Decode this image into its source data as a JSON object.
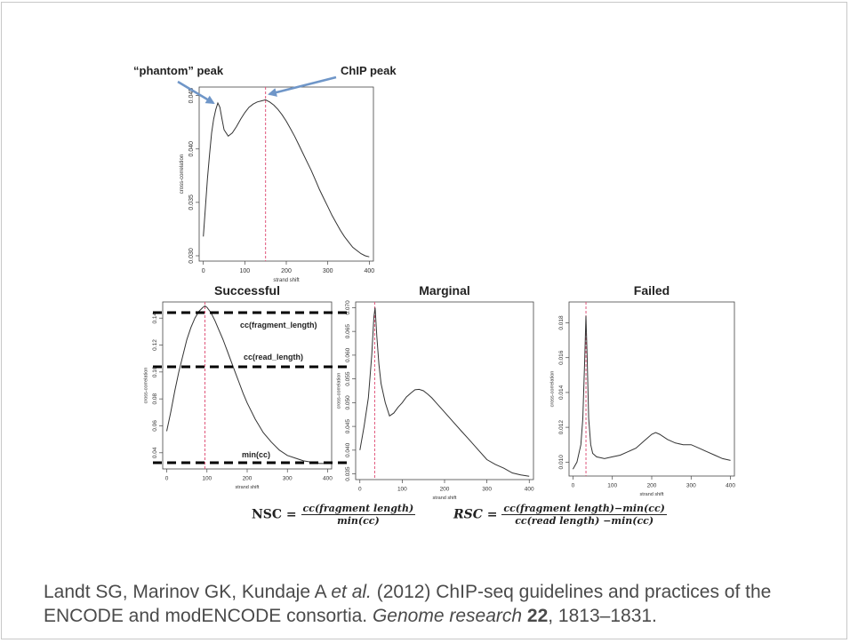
{
  "annotations": {
    "phantom_label": "“phantom” peak",
    "chip_label": "ChIP peak",
    "cc_fragment": "cc(fragment_length)",
    "cc_read": "cc(read_length)",
    "min_cc": "min(cc)"
  },
  "formulas": {
    "nsc": {
      "name": "NSC",
      "equals": " = ",
      "numerator": "cc(fragment length)",
      "denominator": "min(cc)"
    },
    "rsc": {
      "name": "RSC",
      "equals": " = ",
      "numerator": "cc(fragment length)−min(cc)",
      "denominator": "cc(read length) −min(cc)"
    }
  },
  "citation": {
    "authors": "Landt SG, Marinov GK, Kundaje A ",
    "etal": "et al.",
    "title": " (2012) ChIP-seq guidelines and practices of the ENCODE and modENCODE consortia. ",
    "journal": "Genome research",
    "space": " ",
    "volume": "22",
    "pages": ", 1813–1831."
  },
  "colors": {
    "arrow": "#6f96c8",
    "dashed_red": "#e0557a",
    "line": "#333333"
  },
  "chart_data": [
    {
      "type": "line",
      "title": "",
      "xlabel": "strand shift",
      "ylabel": "cross-correlation",
      "xlim": [
        -10,
        410
      ],
      "ylim": [
        0.0295,
        0.0458
      ],
      "xticks": [
        0,
        100,
        200,
        300,
        400
      ],
      "yticks": [
        0.03,
        0.035,
        0.04,
        0.045
      ],
      "ytick_labels": [
        "0.030",
        "0.035",
        "0.040",
        "0.045"
      ],
      "vline": 150,
      "series": [
        {
          "x": [
            0,
            5,
            10,
            15,
            20,
            25,
            30,
            35,
            40,
            45,
            50,
            60,
            70,
            80,
            90,
            100,
            110,
            120,
            130,
            140,
            150,
            160,
            170,
            180,
            190,
            200,
            210,
            220,
            230,
            240,
            250,
            260,
            270,
            280,
            290,
            300,
            310,
            320,
            330,
            340,
            350,
            360,
            370,
            380,
            390,
            400
          ],
          "y": [
            0.0318,
            0.0345,
            0.0372,
            0.0395,
            0.0415,
            0.0428,
            0.0437,
            0.0443,
            0.0439,
            0.0428,
            0.0418,
            0.0412,
            0.0415,
            0.0421,
            0.0428,
            0.0434,
            0.0439,
            0.0442,
            0.0444,
            0.0445,
            0.0446,
            0.0444,
            0.0441,
            0.0437,
            0.0432,
            0.0426,
            0.0419,
            0.0412,
            0.0404,
            0.0396,
            0.0388,
            0.038,
            0.0371,
            0.0362,
            0.0354,
            0.0346,
            0.0338,
            0.0331,
            0.0324,
            0.0318,
            0.0313,
            0.0308,
            0.0305,
            0.0302,
            0.03,
            0.0299
          ]
        }
      ]
    },
    {
      "type": "line",
      "title": "Successful",
      "xlabel": "strand shift",
      "ylabel": "cross-correlation",
      "xlim": [
        -10,
        410
      ],
      "ylim": [
        0.028,
        0.152
      ],
      "xticks": [
        0,
        100,
        200,
        300,
        400
      ],
      "yticks": [
        0.04,
        0.06,
        0.08,
        0.1,
        0.12,
        0.14
      ],
      "ytick_labels": [
        "0.04",
        "0.06",
        "0.08",
        "0.10",
        "0.12",
        "0.14"
      ],
      "vline": 95,
      "series": [
        {
          "x": [
            0,
            10,
            20,
            30,
            40,
            50,
            60,
            70,
            80,
            90,
            95,
            100,
            110,
            120,
            130,
            140,
            150,
            160,
            170,
            180,
            190,
            200,
            220,
            240,
            260,
            280,
            300,
            320,
            340,
            360,
            380,
            400
          ],
          "y": [
            0.056,
            0.07,
            0.086,
            0.1,
            0.112,
            0.124,
            0.133,
            0.14,
            0.145,
            0.148,
            0.149,
            0.148,
            0.144,
            0.138,
            0.131,
            0.124,
            0.116,
            0.108,
            0.1,
            0.092,
            0.084,
            0.077,
            0.065,
            0.055,
            0.048,
            0.042,
            0.038,
            0.036,
            0.034,
            0.033,
            0.032,
            0.032
          ]
        }
      ]
    },
    {
      "type": "line",
      "title": "Marginal",
      "xlabel": "strand shift",
      "ylabel": "cross-correlation",
      "xlim": [
        -10,
        410
      ],
      "ylim": [
        0.0338,
        0.0712
      ],
      "xticks": [
        0,
        100,
        200,
        300,
        400
      ],
      "yticks": [
        0.035,
        0.04,
        0.045,
        0.05,
        0.055,
        0.06,
        0.065,
        0.07
      ],
      "ytick_labels": [
        "0.035",
        "0.040",
        "0.045",
        "0.050",
        "0.055",
        "0.060",
        "0.065",
        "0.070"
      ],
      "vline": 35,
      "series": [
        {
          "x": [
            0,
            10,
            20,
            28,
            33,
            36,
            40,
            45,
            50,
            60,
            70,
            80,
            90,
            100,
            110,
            120,
            130,
            140,
            150,
            160,
            170,
            180,
            190,
            200,
            220,
            240,
            260,
            280,
            300,
            320,
            340,
            360,
            380,
            400
          ],
          "y": [
            0.04,
            0.045,
            0.051,
            0.06,
            0.068,
            0.07,
            0.064,
            0.058,
            0.054,
            0.05,
            0.0472,
            0.0478,
            0.049,
            0.05,
            0.0512,
            0.052,
            0.0527,
            0.0528,
            0.0525,
            0.0518,
            0.051,
            0.05,
            0.049,
            0.048,
            0.046,
            0.044,
            0.042,
            0.04,
            0.038,
            0.037,
            0.0362,
            0.0352,
            0.0348,
            0.0345
          ]
        }
      ]
    },
    {
      "type": "line",
      "title": "Failed",
      "xlabel": "strand shift",
      "ylabel": "cross-correlation",
      "xlim": [
        -10,
        410
      ],
      "ylim": [
        0.0092,
        0.0192
      ],
      "xticks": [
        0,
        100,
        200,
        300,
        400
      ],
      "yticks": [
        0.01,
        0.012,
        0.014,
        0.016,
        0.018
      ],
      "ytick_labels": [
        "0.010",
        "0.012",
        "0.014",
        "0.016",
        "0.018"
      ],
      "vline": 33,
      "series": [
        {
          "x": [
            0,
            10,
            20,
            25,
            30,
            33,
            36,
            40,
            45,
            50,
            60,
            80,
            100,
            120,
            140,
            160,
            180,
            200,
            210,
            220,
            240,
            260,
            280,
            300,
            320,
            340,
            360,
            380,
            400
          ],
          "y": [
            0.0096,
            0.01,
            0.011,
            0.0125,
            0.016,
            0.0184,
            0.016,
            0.0125,
            0.011,
            0.0105,
            0.0103,
            0.0102,
            0.0103,
            0.0104,
            0.0106,
            0.0108,
            0.0112,
            0.0116,
            0.0117,
            0.0116,
            0.0113,
            0.0111,
            0.011,
            0.011,
            0.0108,
            0.0106,
            0.0104,
            0.0102,
            0.0101
          ]
        }
      ]
    }
  ]
}
